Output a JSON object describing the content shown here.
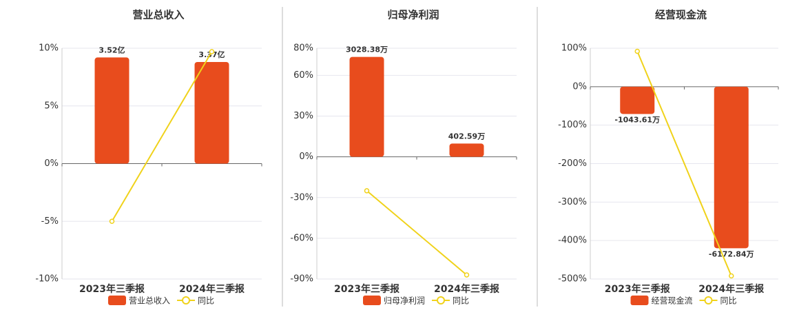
{
  "chart_data": [
    {
      "type": "bar",
      "title": "营业总收入",
      "categories": [
        "2023年三季报",
        "2024年三季报"
      ],
      "series": [
        {
          "name": "营业总收入",
          "color": "#e84c1d",
          "axis": "y2",
          "values": [
            3.52,
            3.37
          ],
          "value_labels": [
            "3.52亿",
            "3.37亿"
          ]
        },
        {
          "name": "同比",
          "type": "line",
          "color": "#f0d21a",
          "values": [
            -5,
            9.7
          ]
        }
      ],
      "ylim": [
        -10,
        10
      ],
      "yticks": [
        {
          "value": -10,
          "label": "-10%"
        },
        {
          "value": -5,
          "label": "-5%"
        },
        {
          "value": 0,
          "label": "0%"
        },
        {
          "value": 5,
          "label": "5%"
        },
        {
          "value": 10,
          "label": "10%"
        }
      ],
      "grid": true
    },
    {
      "type": "bar",
      "title": "归母净利润",
      "categories": [
        "2023年三季报",
        "2024年三季报"
      ],
      "series": [
        {
          "name": "归母净利润",
          "color": "#e84c1d",
          "axis": "y2",
          "values": [
            3028.38,
            402.59
          ],
          "value_labels": [
            "3028.38万",
            "402.59万"
          ]
        },
        {
          "name": "同比",
          "type": "line",
          "color": "#f0d21a",
          "values": [
            -25,
            -87
          ]
        }
      ],
      "ylim": [
        -90,
        80
      ],
      "yticks": [
        {
          "value": -90,
          "label": "-90%"
        },
        {
          "value": -60,
          "label": "-60%"
        },
        {
          "value": -30,
          "label": "-30%"
        },
        {
          "value": 0,
          "label": "0%"
        },
        {
          "value": 30,
          "label": "30%"
        },
        {
          "value": 60,
          "label": "60%"
        },
        {
          "value": 80,
          "label": "80%"
        }
      ],
      "grid": true
    },
    {
      "type": "bar",
      "title": "经营现金流",
      "categories": [
        "2023年三季报",
        "2024年三季报"
      ],
      "series": [
        {
          "name": "经营现金流",
          "color": "#e84c1d",
          "axis": "y2",
          "values": [
            -1043.61,
            -6172.84
          ],
          "value_labels": [
            "-1043.61万",
            "-6172.84万"
          ]
        },
        {
          "name": "同比",
          "type": "line",
          "color": "#f0d21a",
          "values": [
            92,
            -492
          ]
        }
      ],
      "ylim": [
        -500,
        100
      ],
      "yticks": [
        {
          "value": -500,
          "label": "-500%"
        },
        {
          "value": -400,
          "label": "-400%"
        },
        {
          "value": -300,
          "label": "-300%"
        },
        {
          "value": -200,
          "label": "-200%"
        },
        {
          "value": -100,
          "label": "-100%"
        },
        {
          "value": 0,
          "label": "0%"
        },
        {
          "value": 100,
          "label": "100%"
        }
      ],
      "grid": true
    }
  ]
}
